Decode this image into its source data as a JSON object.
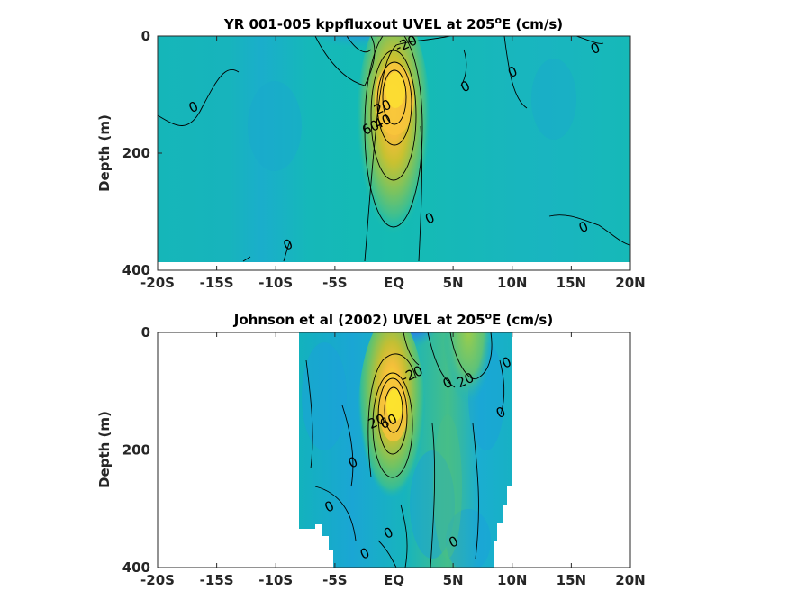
{
  "chart_data": [
    {
      "type": "heatmap",
      "plot_kind": "filled contour with line contours",
      "title_main": "YR 001-005 kppfluxout UVEL at 205",
      "title_sup": "o",
      "title_tail": "E (cm/s)",
      "ylabel": "Depth (m)",
      "xlim": [
        -20,
        20
      ],
      "ylim": [
        400,
        0
      ],
      "y_reversed": true,
      "x_ticks": [
        -20,
        -15,
        -10,
        -5,
        0,
        5,
        10,
        15,
        20
      ],
      "x_tick_labels": [
        "-20S",
        "-15S",
        "-10S",
        "-5S",
        "EQ",
        "5N",
        "10N",
        "15N",
        "20N"
      ],
      "y_ticks": [
        0,
        200,
        400
      ],
      "y_tick_labels": [
        "0",
        "200",
        "400"
      ],
      "data_lat_range": [
        -20,
        20
      ],
      "data_depth_max": 385,
      "features": [
        {
          "kind": "eastward core",
          "lat": 0,
          "depth": 100,
          "max_cm_s": 80
        },
        {
          "kind": "westward surface flow",
          "lat": -3,
          "depth": 20,
          "min_cm_s": -40
        }
      ],
      "contour_labels": [
        {
          "text": "-20",
          "lat": 1,
          "depth": 12
        },
        {
          "text": "0",
          "lat": -17,
          "depth": 120
        },
        {
          "text": "0",
          "lat": 6,
          "depth": 85
        },
        {
          "text": "0",
          "lat": 10,
          "depth": 60
        },
        {
          "text": "0",
          "lat": 17,
          "depth": 20
        },
        {
          "text": "0",
          "lat": 3,
          "depth": 310
        },
        {
          "text": "0",
          "lat": -9,
          "depth": 355
        },
        {
          "text": "0",
          "lat": 16,
          "depth": 325
        },
        {
          "text": "60",
          "lat": -2,
          "depth": 155
        },
        {
          "text": "40",
          "lat": -1,
          "depth": 145
        },
        {
          "text": "20",
          "lat": -1,
          "depth": 120
        }
      ]
    },
    {
      "type": "heatmap",
      "plot_kind": "filled contour with line contours",
      "title_main": "Johnson et al (2002) UVEL at 205",
      "title_sup": "o",
      "title_tail": "E (cm/s)",
      "ylabel": "Depth (m)",
      "xlim": [
        -20,
        20
      ],
      "ylim": [
        400,
        0
      ],
      "y_reversed": true,
      "x_ticks": [
        -20,
        -15,
        -10,
        -5,
        0,
        5,
        10,
        15,
        20
      ],
      "x_tick_labels": [
        "-20S",
        "-15S",
        "-10S",
        "-5S",
        "EQ",
        "5N",
        "10N",
        "15N",
        "20N"
      ],
      "y_ticks": [
        0,
        200,
        400
      ],
      "y_tick_labels": [
        "0",
        "200",
        "400"
      ],
      "data_lat_range": [
        -8,
        10
      ],
      "features": [
        {
          "kind": "eastward core",
          "lat": 0,
          "depth": 140,
          "max_cm_s": 90
        },
        {
          "kind": "westward surface flow",
          "lat": 2,
          "depth": 15,
          "min_cm_s": -40
        },
        {
          "kind": "eastward NECC",
          "lat": 7,
          "depth": 30,
          "max_cm_s": 30
        }
      ],
      "contour_labels": [
        {
          "text": "-20",
          "lat": 1.5,
          "depth": 70
        },
        {
          "text": "20",
          "lat": 6,
          "depth": 80
        },
        {
          "text": "0",
          "lat": 4.5,
          "depth": 85
        },
        {
          "text": "0",
          "lat": 9.5,
          "depth": 50
        },
        {
          "text": "0",
          "lat": 9,
          "depth": 135
        },
        {
          "text": "0",
          "lat": -3.5,
          "depth": 220
        },
        {
          "text": "0",
          "lat": -5.5,
          "depth": 295
        },
        {
          "text": "0",
          "lat": -0.5,
          "depth": 340
        },
        {
          "text": "0",
          "lat": 5,
          "depth": 355
        },
        {
          "text": "0",
          "lat": -2.5,
          "depth": 375
        },
        {
          "text": "20",
          "lat": -1.5,
          "depth": 150
        },
        {
          "text": "60",
          "lat": -0.5,
          "depth": 150
        }
      ]
    }
  ]
}
